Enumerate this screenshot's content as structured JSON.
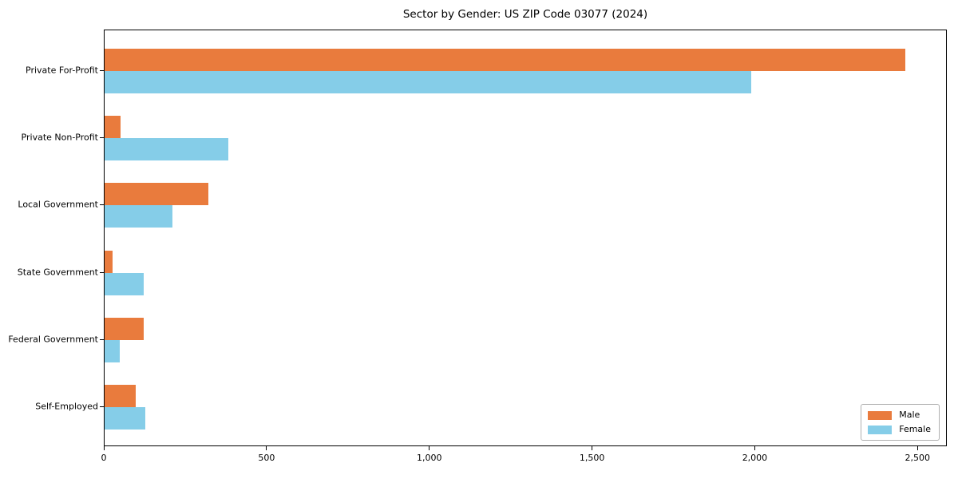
{
  "chart_data": {
    "type": "bar",
    "orientation": "horizontal",
    "title": "Sector by Gender: US ZIP Code 03077 (2024)",
    "categories": [
      "Private For-Profit",
      "Private Non-Profit",
      "Local Government",
      "State Government",
      "Federal Government",
      "Self-Employed"
    ],
    "series": [
      {
        "name": "Male",
        "color": "#e97b3d",
        "values": [
          2465,
          50,
          320,
          25,
          120,
          95
        ]
      },
      {
        "name": "Female",
        "color": "#85cde8",
        "values": [
          1990,
          380,
          210,
          120,
          47,
          125
        ]
      }
    ],
    "xlabel": "",
    "ylabel": "",
    "xlim": [
      0,
      2590
    ],
    "x_ticks": [
      {
        "value": 0,
        "label": "0"
      },
      {
        "value": 500,
        "label": "500"
      },
      {
        "value": 1000,
        "label": "1,000"
      },
      {
        "value": 1500,
        "label": "1,500"
      },
      {
        "value": 2000,
        "label": "2,000"
      },
      {
        "value": 2500,
        "label": "2,500"
      }
    ],
    "grid": false,
    "legend": {
      "position": "lower right"
    },
    "background_color": "#ffffff",
    "text_color": "#000000",
    "axis_color": "#000000"
  }
}
